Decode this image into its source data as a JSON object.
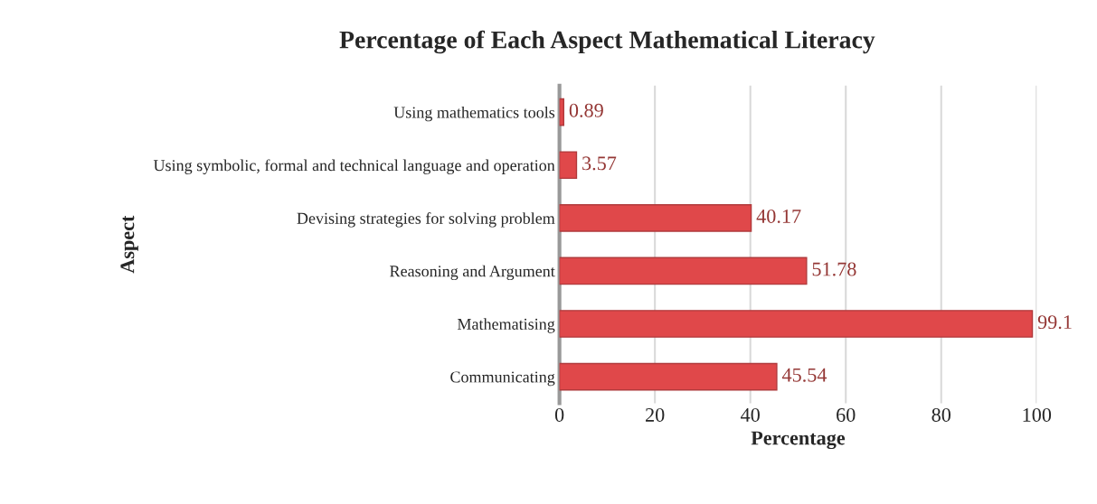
{
  "chart_data": {
    "type": "bar",
    "orientation": "horizontal",
    "title": "Percentage of Each Aspect Mathematical Literacy",
    "xlabel": "Percentage",
    "ylabel": "Aspect",
    "categories": [
      "Using mathematics tools",
      "Using symbolic, formal and technical language and operation",
      "Devising strategies for solving problem",
      "Reasoning and Argument",
      "Mathematising",
      "Communicating"
    ],
    "values": [
      0.89,
      3.57,
      40.17,
      51.78,
      99.1,
      45.54
    ],
    "color": "#e0484a",
    "data_labels": true,
    "xlim": [
      0,
      100
    ],
    "xticks": [
      0,
      20,
      40,
      60,
      80,
      100
    ],
    "grid": "x"
  }
}
